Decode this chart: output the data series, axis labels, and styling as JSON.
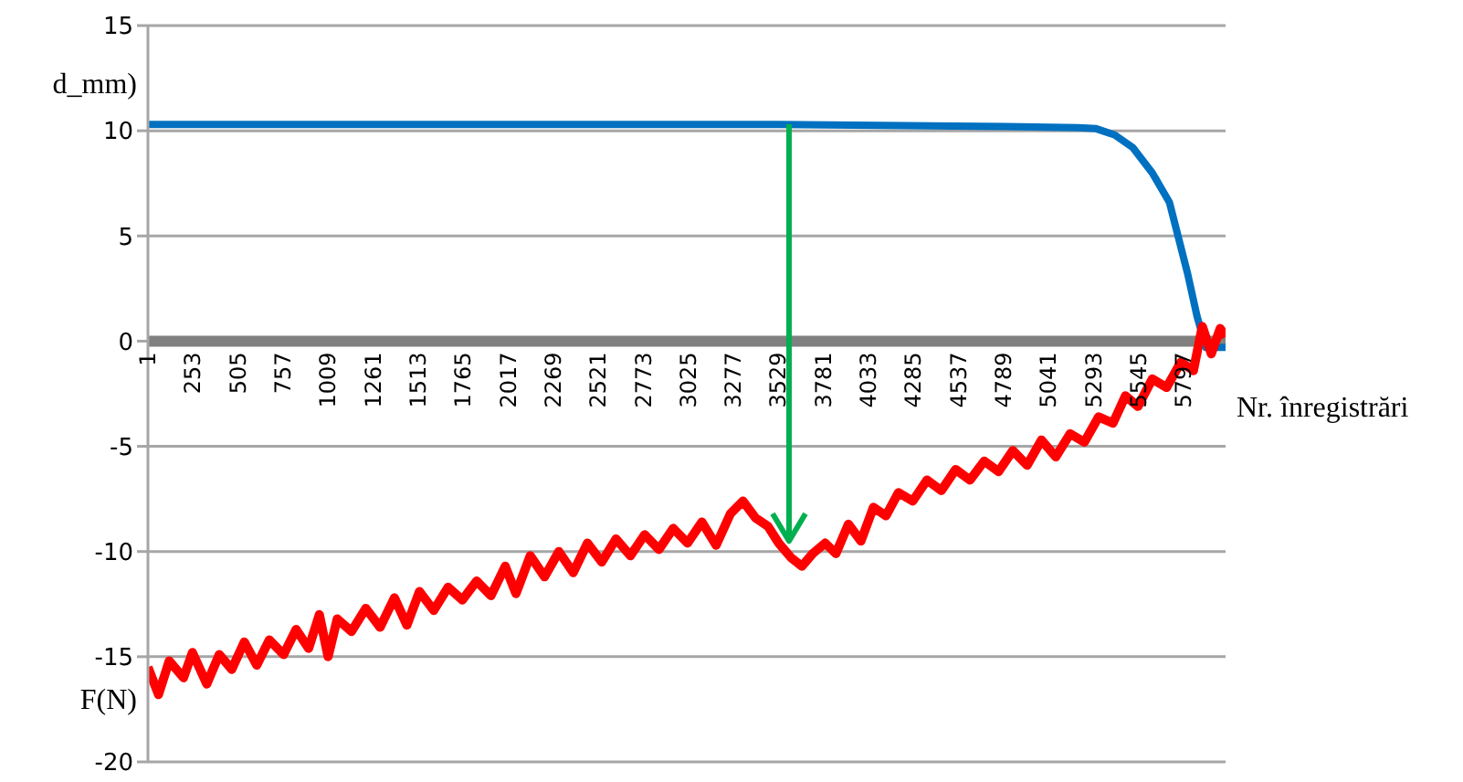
{
  "chart_data": {
    "type": "line",
    "xlabel": "Nr. înregistrări",
    "xlim": [
      1,
      6030
    ],
    "xticks": [
      1,
      253,
      505,
      757,
      1009,
      1261,
      1513,
      1765,
      2017,
      2269,
      2521,
      2773,
      3025,
      3277,
      3529,
      3781,
      4033,
      4285,
      4537,
      4789,
      5041,
      5293,
      5545,
      5797
    ],
    "ylim": [
      -20,
      15
    ],
    "yticks": [
      -20,
      -15,
      -10,
      -5,
      0,
      5,
      10,
      15
    ],
    "grid": "y",
    "legend": false,
    "marker": "none",
    "line_style": "solid",
    "series": [
      {
        "name": "d_mm)",
        "color": "#0070c0",
        "x": [
          1,
          3529,
          4800,
          5205,
          5306,
          5410,
          5511,
          5620,
          5716,
          5818,
          5870,
          5920,
          6030
        ],
        "values": [
          10.3,
          10.3,
          10.2,
          10.15,
          10.1,
          9.8,
          9.2,
          8.0,
          6.6,
          3.2,
          1.2,
          -0.3,
          -0.3
        ]
      },
      {
        "name": "F(N)",
        "color": "#ff0000",
        "x": [
          1,
          60,
          120,
          200,
          250,
          330,
          400,
          470,
          540,
          610,
          680,
          760,
          830,
          900,
          960,
          1009,
          1060,
          1140,
          1220,
          1300,
          1380,
          1450,
          1520,
          1600,
          1680,
          1760,
          1840,
          1920,
          2000,
          2060,
          2140,
          2220,
          2300,
          2380,
          2460,
          2540,
          2620,
          2700,
          2780,
          2860,
          2940,
          3020,
          3100,
          3180,
          3260,
          3330,
          3400,
          3470,
          3530,
          3600,
          3660,
          3720,
          3790,
          3850,
          3920,
          3990,
          4060,
          4130,
          4200,
          4280,
          4360,
          4440,
          4520,
          4600,
          4680,
          4760,
          4840,
          4920,
          5000,
          5080,
          5160,
          5240,
          5320,
          5400,
          5470,
          5540,
          5620,
          5700,
          5780,
          5850,
          5900,
          5950,
          6000,
          6030
        ],
        "values": [
          -15.5,
          -16.8,
          -15.2,
          -16.0,
          -14.8,
          -16.3,
          -14.9,
          -15.6,
          -14.3,
          -15.4,
          -14.2,
          -14.9,
          -13.7,
          -14.6,
          -13.0,
          -15.0,
          -13.2,
          -13.8,
          -12.7,
          -13.6,
          -12.2,
          -13.5,
          -11.9,
          -12.8,
          -11.7,
          -12.3,
          -11.4,
          -12.1,
          -10.7,
          -12.0,
          -10.2,
          -11.2,
          -10.0,
          -11.0,
          -9.6,
          -10.5,
          -9.4,
          -10.2,
          -9.2,
          -9.9,
          -8.9,
          -9.6,
          -8.6,
          -9.7,
          -8.2,
          -7.6,
          -8.4,
          -8.8,
          -9.6,
          -10.3,
          -10.7,
          -10.1,
          -9.6,
          -10.1,
          -8.7,
          -9.5,
          -7.9,
          -8.3,
          -7.2,
          -7.6,
          -6.6,
          -7.1,
          -6.1,
          -6.6,
          -5.7,
          -6.2,
          -5.2,
          -5.9,
          -4.7,
          -5.5,
          -4.4,
          -4.8,
          -3.6,
          -3.9,
          -2.6,
          -3.1,
          -1.8,
          -2.2,
          -1.0,
          -1.4,
          0.7,
          -0.6,
          0.6,
          0.2
        ]
      }
    ]
  }
}
